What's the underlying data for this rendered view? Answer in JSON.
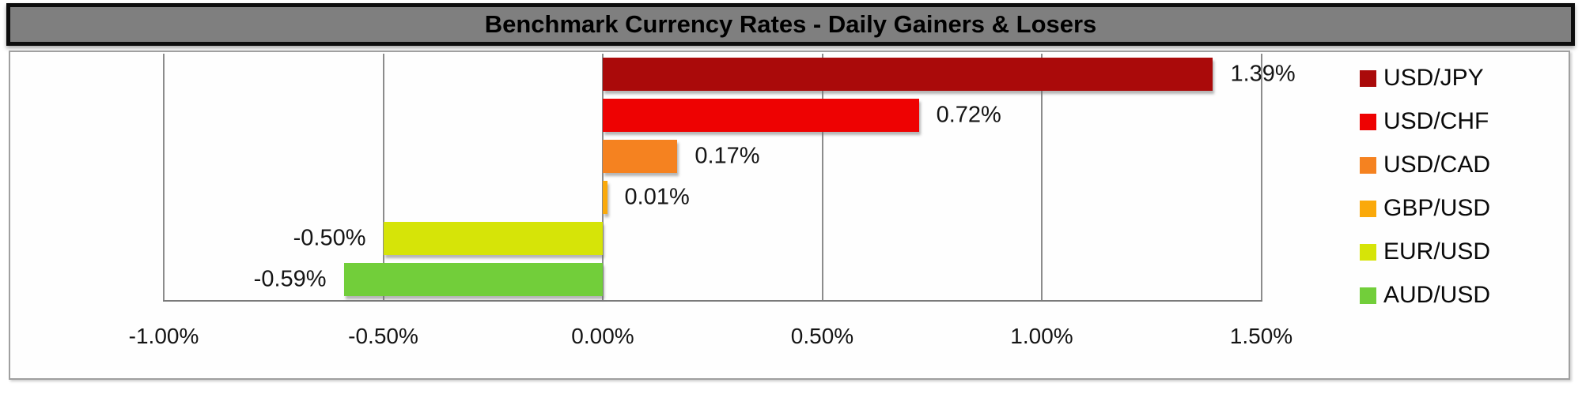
{
  "title": "Benchmark Currency Rates - Daily Gainers & Losers",
  "chart_data": {
    "type": "bar",
    "orientation": "horizontal",
    "title": "Benchmark Currency Rates - Daily Gainers & Losers",
    "xlabel": "",
    "ylabel": "",
    "x_range": [
      -1.0,
      1.5
    ],
    "grid": true,
    "legend_position": "right",
    "x_ticks": [
      {
        "value": -1.0,
        "label": "-1.00%"
      },
      {
        "value": -0.5,
        "label": "-0.50%"
      },
      {
        "value": 0.0,
        "label": "0.00%"
      },
      {
        "value": 0.5,
        "label": "0.50%"
      },
      {
        "value": 1.0,
        "label": "1.00%"
      },
      {
        "value": 1.5,
        "label": "1.50%"
      }
    ],
    "series": [
      {
        "name": "USD/JPY",
        "value": 1.39,
        "label": "1.39%",
        "color": "#aa0a0a"
      },
      {
        "name": "USD/CHF",
        "value": 0.72,
        "label": "0.72%",
        "color": "#ee0202"
      },
      {
        "name": "USD/CAD",
        "value": 0.17,
        "label": "0.17%",
        "color": "#f58220"
      },
      {
        "name": "GBP/USD",
        "value": 0.01,
        "label": "0.01%",
        "color": "#faa90a"
      },
      {
        "name": "EUR/USD",
        "value": -0.5,
        "label": "-0.50%",
        "color": "#d6e408"
      },
      {
        "name": "AUD/USD",
        "value": -0.59,
        "label": "-0.59%",
        "color": "#72ce3a"
      }
    ]
  },
  "colors": {
    "title_bar_bg": "#7f7f7f",
    "title_bar_border": "#0d0d0d",
    "title_text": "#000000",
    "container_border": "#a0a0a0",
    "gridline": "#8c8c8c",
    "axis_line": "#7a7a7a",
    "label_text": "#141414"
  }
}
